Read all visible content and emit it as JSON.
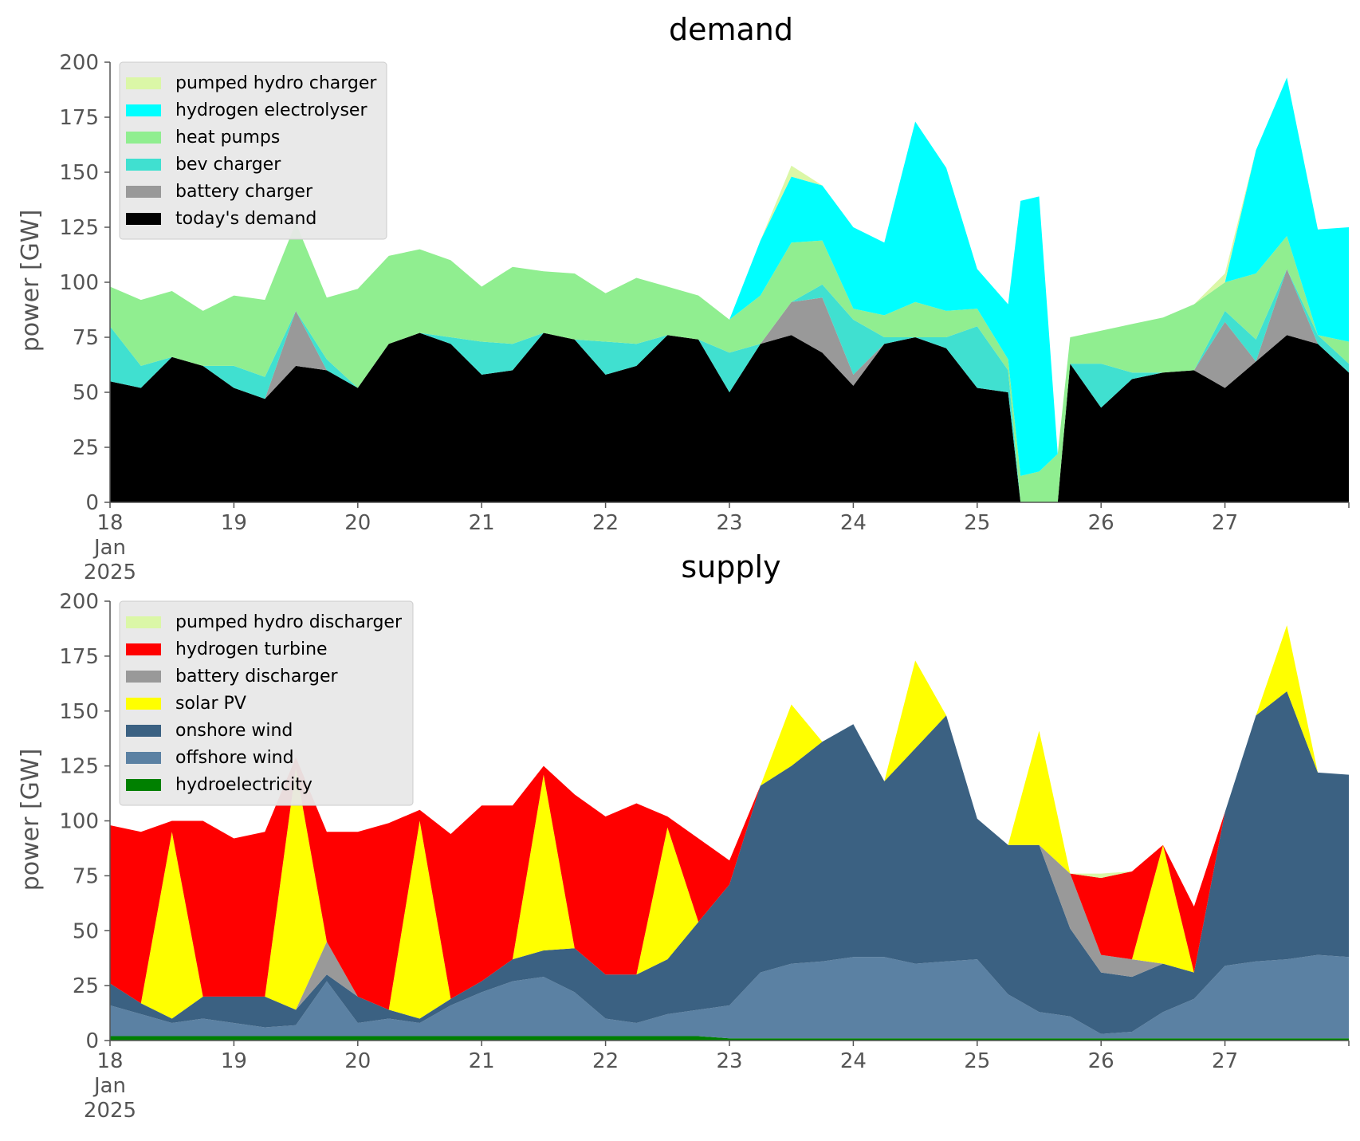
{
  "chart_data": [
    {
      "type": "area",
      "title": "demand",
      "ylabel": "power [GW]",
      "xlabel": "",
      "ylim": [
        0,
        200
      ],
      "yticks": [
        "0",
        "25",
        "50",
        "75",
        "100",
        "125",
        "150",
        "175",
        "200"
      ],
      "xticks": [
        "18\nJan\n2025",
        "19",
        "20",
        "21",
        "22",
        "23",
        "24",
        "25",
        "26",
        "27"
      ],
      "x_start": "2025-01-18",
      "x_end": "2025-01-28",
      "stacked": true,
      "legend_position": "upper-left",
      "grid": false,
      "x": [
        18.0,
        18.25,
        18.5,
        18.75,
        19.0,
        19.25,
        19.5,
        19.75,
        20.0,
        20.25,
        20.5,
        20.75,
        21.0,
        21.25,
        21.5,
        21.75,
        22.0,
        22.25,
        22.5,
        22.75,
        23.0,
        23.25,
        23.5,
        23.75,
        24.0,
        24.25,
        24.5,
        24.75,
        25.0,
        25.25,
        25.35,
        25.5,
        25.65,
        25.75,
        26.0,
        26.25,
        26.5,
        26.75,
        27.0,
        27.25,
        27.5,
        27.75,
        28.0
      ],
      "series": [
        {
          "name": "today's demand",
          "color": "#000000",
          "values": [
            55,
            52,
            66,
            62,
            52,
            47,
            62,
            60,
            52,
            72,
            77,
            72,
            58,
            60,
            77,
            74,
            58,
            62,
            76,
            74,
            50,
            72,
            76,
            68,
            53,
            72,
            75,
            70,
            52,
            50,
            0,
            0,
            0,
            63,
            43,
            56,
            59,
            60,
            52,
            64,
            76,
            72,
            59
          ]
        },
        {
          "name": "battery charger",
          "color": "#999999",
          "values": [
            0,
            0,
            0,
            0,
            0,
            0,
            25,
            0,
            0,
            0,
            0,
            0,
            0,
            0,
            0,
            0,
            0,
            0,
            0,
            0,
            0,
            0,
            15,
            25,
            5,
            0,
            0,
            0,
            0,
            0,
            0,
            0,
            0,
            0,
            0,
            0,
            0,
            0,
            30,
            0,
            30,
            0,
            0
          ]
        },
        {
          "name": "bev charger",
          "color": "#40e0d0",
          "values": [
            25,
            10,
            0,
            0,
            10,
            10,
            0,
            5,
            0,
            0,
            0,
            3,
            15,
            12,
            0,
            0,
            15,
            10,
            0,
            0,
            18,
            0,
            0,
            6,
            25,
            3,
            0,
            5,
            28,
            10,
            0,
            0,
            0,
            0,
            20,
            3,
            0,
            0,
            5,
            10,
            0,
            4,
            4
          ]
        },
        {
          "name": "heat pumps",
          "color": "#90ee90",
          "values": [
            18,
            30,
            30,
            25,
            32,
            35,
            40,
            28,
            45,
            40,
            38,
            35,
            25,
            35,
            28,
            30,
            22,
            30,
            22,
            20,
            15,
            22,
            27,
            20,
            5,
            10,
            16,
            12,
            8,
            5,
            12,
            14,
            22,
            12,
            15,
            22,
            25,
            30,
            13,
            30,
            15,
            0,
            10
          ]
        },
        {
          "name": "hydrogen electrolyser",
          "color": "#00ffff",
          "values": [
            0,
            0,
            0,
            0,
            0,
            0,
            0,
            0,
            0,
            0,
            0,
            0,
            0,
            0,
            0,
            0,
            0,
            0,
            0,
            0,
            0,
            25,
            30,
            25,
            37,
            33,
            82,
            65,
            18,
            25,
            125,
            125,
            0,
            0,
            0,
            0,
            0,
            0,
            0,
            56,
            72,
            48,
            52
          ]
        },
        {
          "name": "pumped hydro charger",
          "color": "#dbf7a7",
          "values": [
            0,
            0,
            0,
            0,
            0,
            0,
            0,
            0,
            0,
            0,
            0,
            0,
            0,
            0,
            0,
            0,
            0,
            0,
            0,
            0,
            0,
            0,
            5,
            0,
            0,
            0,
            0,
            0,
            0,
            0,
            0,
            0,
            0,
            0,
            0,
            0,
            0,
            0,
            4,
            0,
            0,
            0,
            0
          ]
        }
      ]
    },
    {
      "type": "area",
      "title": "supply",
      "ylabel": "power [GW]",
      "xlabel": "",
      "ylim": [
        0,
        200
      ],
      "yticks": [
        "0",
        "25",
        "50",
        "75",
        "100",
        "125",
        "150",
        "175",
        "200"
      ],
      "xticks": [
        "18\nJan\n2025",
        "19",
        "20",
        "21",
        "22",
        "23",
        "24",
        "25",
        "26",
        "27"
      ],
      "x_start": "2025-01-18",
      "x_end": "2025-01-28",
      "stacked": true,
      "legend_position": "upper-left",
      "grid": false,
      "x": [
        18.0,
        18.25,
        18.5,
        18.75,
        19.0,
        19.25,
        19.5,
        19.75,
        20.0,
        20.25,
        20.5,
        20.75,
        21.0,
        21.25,
        21.5,
        21.75,
        22.0,
        22.25,
        22.5,
        22.75,
        23.0,
        23.25,
        23.5,
        23.75,
        24.0,
        24.25,
        24.5,
        24.75,
        25.0,
        25.25,
        25.5,
        25.75,
        26.0,
        26.25,
        26.5,
        26.75,
        27.0,
        27.25,
        27.5,
        27.75,
        28.0
      ],
      "series": [
        {
          "name": "hydroelectricity",
          "color": "#008000",
          "values": [
            2,
            2,
            2,
            2,
            2,
            2,
            2,
            2,
            2,
            2,
            2,
            2,
            2,
            2,
            2,
            2,
            2,
            2,
            2,
            2,
            1,
            1,
            1,
            1,
            1,
            1,
            1,
            1,
            1,
            1,
            1,
            1,
            1,
            1,
            1,
            1,
            1,
            1,
            1,
            1,
            1
          ]
        },
        {
          "name": "offshore wind",
          "color": "#5b81a3",
          "values": [
            14,
            10,
            6,
            8,
            6,
            4,
            5,
            25,
            6,
            8,
            6,
            14,
            20,
            25,
            27,
            20,
            8,
            6,
            10,
            12,
            15,
            30,
            34,
            35,
            37,
            37,
            34,
            35,
            36,
            20,
            12,
            10,
            2,
            3,
            12,
            18,
            33,
            35,
            36,
            38,
            37
          ]
        },
        {
          "name": "onshore wind",
          "color": "#3b6182",
          "values": [
            10,
            5,
            2,
            10,
            12,
            14,
            7,
            3,
            12,
            4,
            2,
            3,
            5,
            10,
            12,
            20,
            20,
            22,
            25,
            40,
            55,
            85,
            90,
            100,
            106,
            80,
            98,
            112,
            64,
            68,
            76,
            40,
            28,
            25,
            22,
            12,
            70,
            112,
            122,
            83,
            83
          ]
        },
        {
          "name": "battery discharger",
          "color": "#999999",
          "values": [
            0,
            0,
            0,
            0,
            0,
            0,
            0,
            15,
            0,
            0,
            0,
            0,
            0,
            0,
            0,
            0,
            0,
            0,
            0,
            0,
            0,
            0,
            0,
            0,
            0,
            0,
            0,
            0,
            0,
            0,
            0,
            25,
            8,
            8,
            0,
            0,
            0,
            0,
            0,
            0,
            0
          ]
        },
        {
          "name": "solar PV",
          "color": "#ffff00",
          "values": [
            0,
            0,
            85,
            0,
            0,
            0,
            110,
            0,
            0,
            0,
            90,
            0,
            0,
            0,
            80,
            0,
            0,
            0,
            60,
            0,
            0,
            0,
            28,
            0,
            0,
            0,
            40,
            0,
            0,
            0,
            52,
            0,
            0,
            0,
            54,
            0,
            0,
            0,
            30,
            0,
            0
          ]
        },
        {
          "name": "hydrogen turbine",
          "color": "#ff0000",
          "values": [
            72,
            78,
            5,
            80,
            72,
            75,
            5,
            50,
            75,
            85,
            5,
            75,
            80,
            70,
            4,
            70,
            72,
            78,
            5,
            38,
            11,
            0,
            0,
            0,
            0,
            0,
            0,
            0,
            0,
            0,
            0,
            0,
            35,
            40,
            0,
            30,
            0,
            0,
            0,
            0,
            0
          ]
        },
        {
          "name": "pumped hydro discharger",
          "color": "#dbf7a7",
          "values": [
            0,
            0,
            0,
            0,
            0,
            0,
            0,
            0,
            0,
            0,
            0,
            0,
            0,
            0,
            0,
            0,
            0,
            0,
            0,
            0,
            0,
            0,
            0,
            0,
            0,
            0,
            0,
            0,
            0,
            0,
            0,
            0,
            2,
            0,
            0,
            0,
            0,
            0,
            0,
            0,
            0
          ]
        }
      ]
    }
  ],
  "legend_order": [
    [
      "pumped hydro charger",
      "hydrogen electrolyser",
      "heat pumps",
      "bev charger",
      "battery charger",
      "today's demand"
    ],
    [
      "pumped hydro discharger",
      "hydrogen turbine",
      "battery discharger",
      "solar PV",
      "onshore wind",
      "offshore wind",
      "hydroelectricity"
    ]
  ]
}
